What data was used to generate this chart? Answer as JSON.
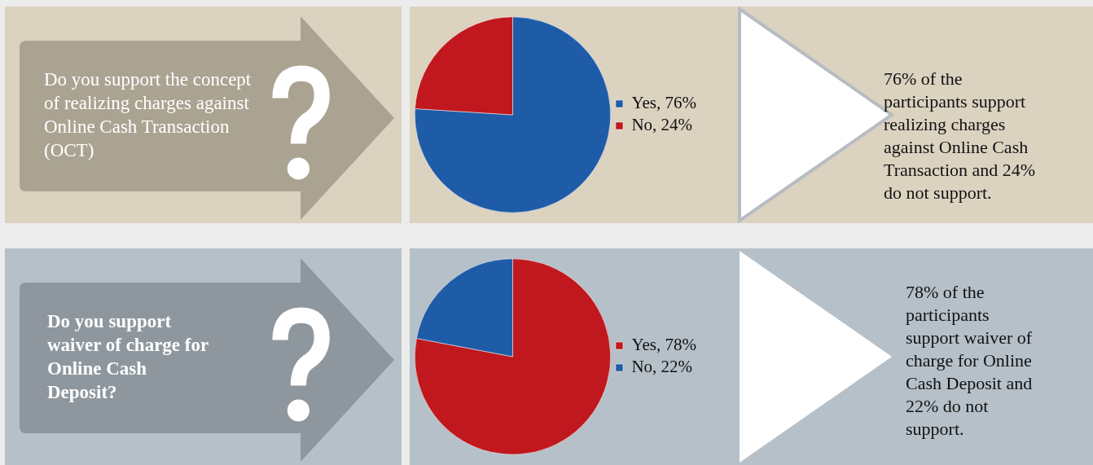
{
  "chart_data": [
    {
      "type": "pie",
      "title": "Do you support the concept of realizing charges against Online Cash Transaction (OCT)",
      "categories": [
        "Yes, 76%",
        "No, 24%"
      ],
      "values": [
        76,
        24
      ],
      "colors": [
        "#1f5ca8",
        "#c0181e"
      ],
      "legend": "right",
      "annotations": [
        "76% of the participants support realizing charges against Online Cash Transaction and 24% do not support."
      ]
    },
    {
      "type": "pie",
      "title": "Do you support waiver of charge for Online Cash Deposit?",
      "categories": [
        "Yes, 78%",
        "No, 22%"
      ],
      "values": [
        78,
        22
      ],
      "colors": [
        "#c0181e",
        "#1f5ca8"
      ],
      "legend": "right",
      "annotations": [
        "78% of the participants support waiver of charge for Online Cash Deposit and 22% do not support."
      ]
    }
  ]
}
